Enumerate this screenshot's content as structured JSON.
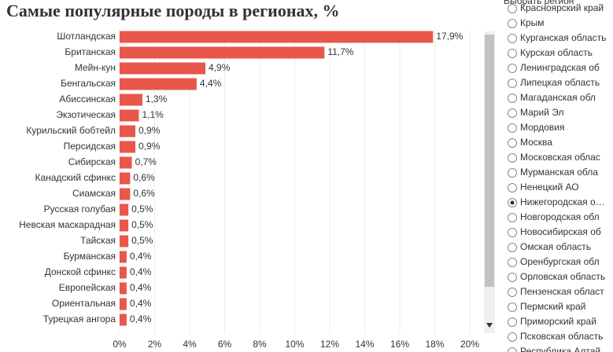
{
  "chart_data": {
    "type": "bar",
    "orientation": "horizontal",
    "title": "Самые популярные породы в регионах, %",
    "categories": [
      "Шотландская",
      "Британская",
      "Мейн-кун",
      "Бенгальская",
      "Абиссинская",
      "Экзотическая",
      "Курильский бобтейл",
      "Персидская",
      "Сибирская",
      "Канадский сфинкс",
      "Сиамская",
      "Русская голубая",
      "Невская маскарадная",
      "Тайская",
      "Бурманская",
      "Донской сфинкс",
      "Европейская",
      "Ориентальная",
      "Турецкая ангора"
    ],
    "values": [
      17.9,
      11.7,
      4.9,
      4.4,
      1.3,
      1.1,
      0.9,
      0.9,
      0.7,
      0.6,
      0.6,
      0.5,
      0.5,
      0.5,
      0.4,
      0.4,
      0.4,
      0.4,
      0.4
    ],
    "value_labels": [
      "17,9%",
      "11,7%",
      "4,9%",
      "4,4%",
      "1,3%",
      "1,1%",
      "0,9%",
      "0,9%",
      "0,7%",
      "0,6%",
      "0,6%",
      "0,5%",
      "0,5%",
      "0,5%",
      "0,4%",
      "0,4%",
      "0,4%",
      "0,4%",
      "0,4%"
    ],
    "color": "#e8574a",
    "xlim": [
      0,
      20
    ],
    "xticks": [
      {
        "value": 0,
        "label": "0%"
      },
      {
        "value": 2,
        "label": "2%"
      },
      {
        "value": 4,
        "label": "4%"
      },
      {
        "value": 6,
        "label": "6%"
      },
      {
        "value": 8,
        "label": "8%"
      },
      {
        "value": 10,
        "label": "10%"
      },
      {
        "value": 12,
        "label": "12%"
      },
      {
        "value": 14,
        "label": "14%"
      },
      {
        "value": 16,
        "label": "16%"
      },
      {
        "value": 18,
        "label": "18%"
      },
      {
        "value": 20,
        "label": "20%"
      }
    ],
    "grid": true
  },
  "panel": {
    "title": "Выбрать регион",
    "options": [
      "Красноярский край",
      "Крым",
      "Курганская область",
      "Курская область",
      "Ленинградская об",
      "Липецкая область",
      "Магаданская обл",
      "Марий Эл",
      "Мордовия",
      "Москва",
      "Московская облас",
      "Мурманская обла",
      "Ненецкий АО",
      "Нижегородская о…",
      "Новгородская обл",
      "Новосибирская об",
      "Омская область",
      "Оренбургская обл",
      "Орловская область",
      "Пензенская област",
      "Пермский край",
      "Приморский край",
      "Псковская область",
      "Республика Алтай"
    ],
    "selected": 13
  }
}
